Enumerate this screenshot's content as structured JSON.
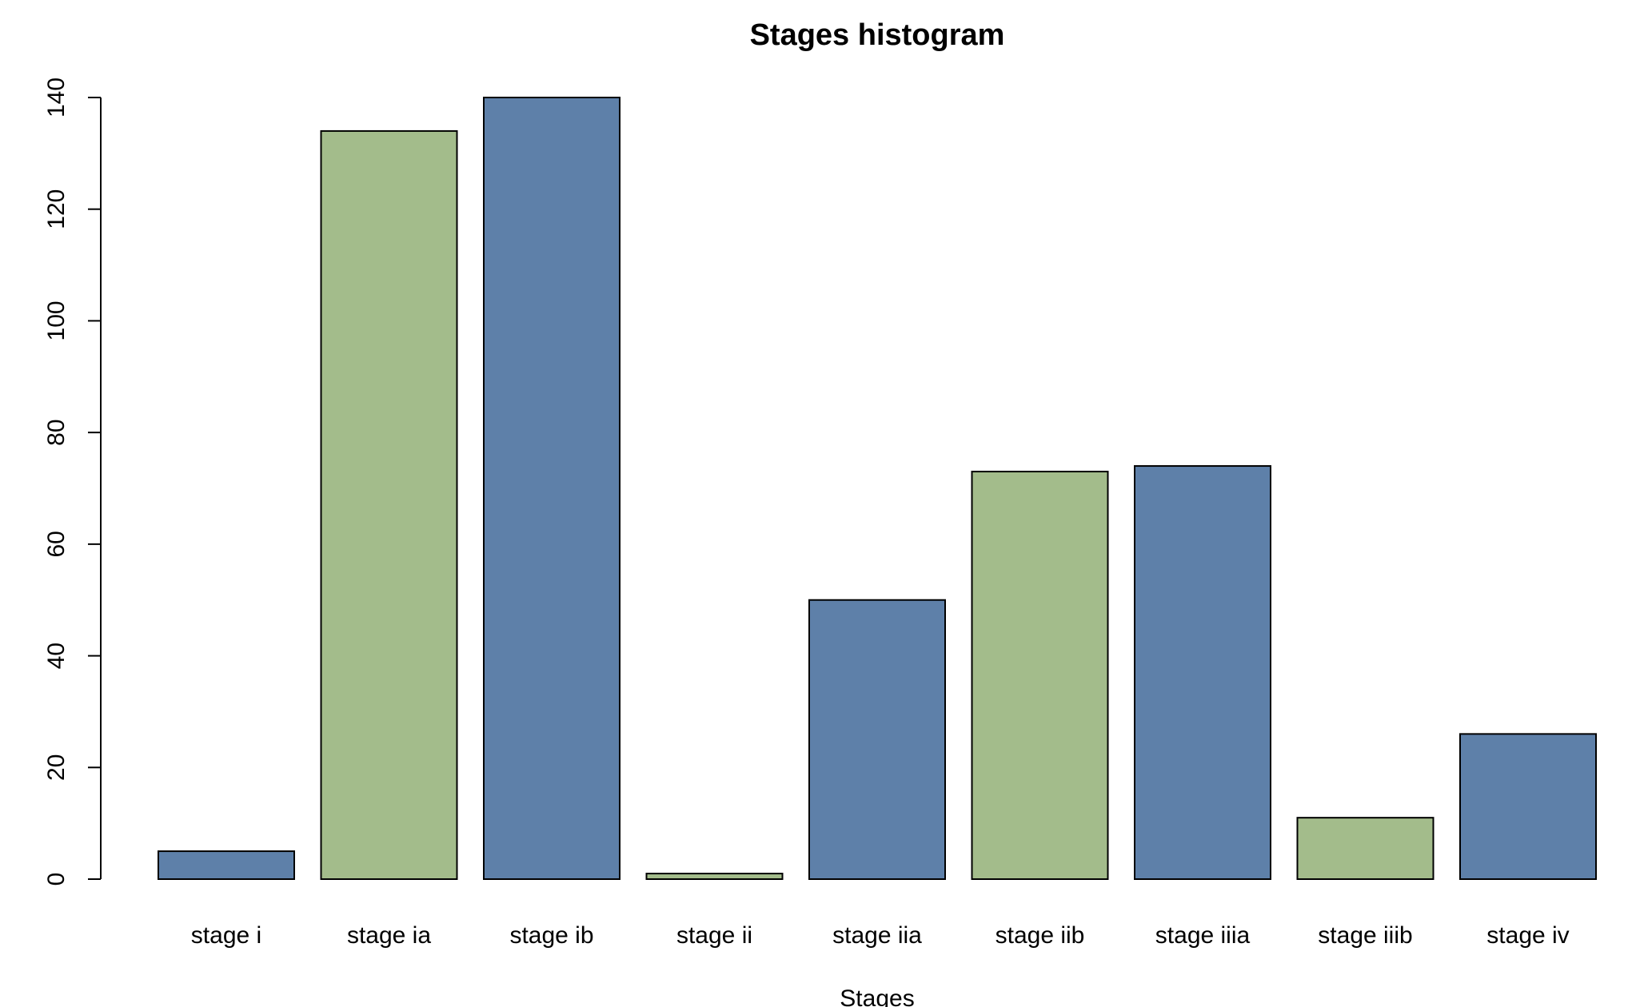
{
  "chart_data": {
    "type": "bar",
    "title": "Stages histogram",
    "xlabel": "Stages",
    "ylabel": "",
    "categories": [
      "stage i",
      "stage ia",
      "stage ib",
      "stage ii",
      "stage iia",
      "stage iib",
      "stage iiia",
      "stage iiib",
      "stage iv"
    ],
    "values": [
      5,
      134,
      140,
      1,
      50,
      73,
      74,
      11,
      26
    ],
    "bar_colors": [
      "#5e80a9",
      "#a3bc8b",
      "#5e80a9",
      "#a3bc8b",
      "#5e80a9",
      "#a3bc8b",
      "#5e80a9",
      "#a3bc8b",
      "#5e80a9"
    ],
    "ylim": [
      0,
      140
    ],
    "yticks": [
      0,
      20,
      40,
      60,
      80,
      100,
      120,
      140
    ],
    "grid": false,
    "legend": "none"
  }
}
